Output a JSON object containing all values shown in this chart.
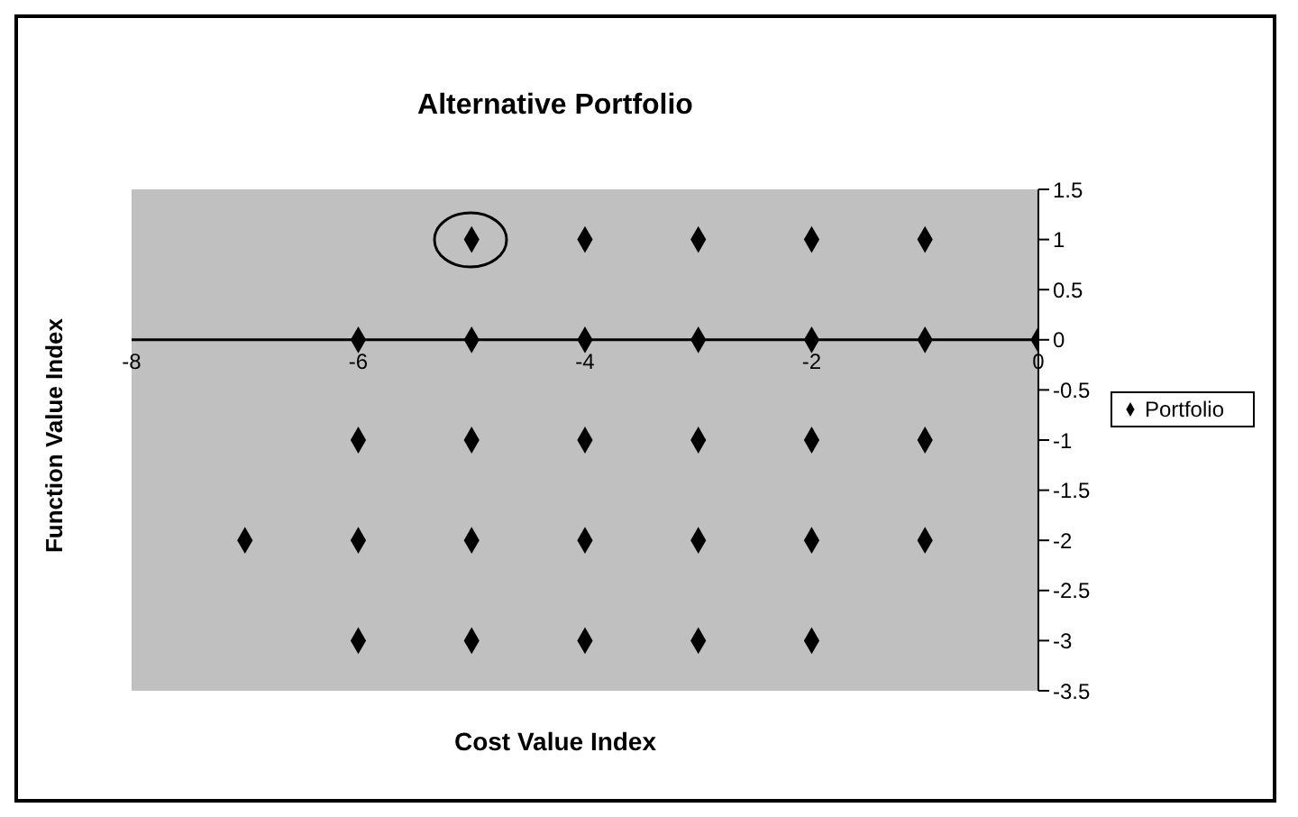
{
  "chart_data": {
    "type": "scatter",
    "title": "Alternative Portfolio",
    "xlabel": "Cost Value Index",
    "ylabel": "Function Value Index",
    "series": [
      {
        "name": "Portfolio",
        "color": "#000000",
        "x": [
          -5,
          -4,
          -3,
          -2,
          -1,
          -6,
          -5,
          -4,
          -3,
          -2,
          -1,
          0,
          -6,
          -5,
          -4,
          -3,
          -2,
          -1,
          -7,
          -6,
          -5,
          -4,
          -3,
          -2,
          -1,
          -6,
          -5,
          -4,
          -3,
          -2
        ],
        "values": [
          1,
          1,
          1,
          1,
          1,
          0,
          0,
          0,
          0,
          0,
          0,
          0,
          -1,
          -1,
          -1,
          -1,
          -1,
          -1,
          -2,
          -2,
          -2,
          -2,
          -2,
          -2,
          -2,
          -3,
          -3,
          -3,
          -3,
          -3
        ]
      }
    ],
    "xlim": [
      -8,
      0
    ],
    "xticks": [
      -8,
      -6,
      -4,
      -2,
      0
    ],
    "ylim": [
      -3.5,
      1.5
    ],
    "yticks": [
      1.5,
      1,
      0.5,
      0,
      -0.5,
      -1,
      -1.5,
      -2,
      -2.5,
      -3,
      -3.5
    ],
    "marker": "diamond",
    "legend": "right"
  }
}
